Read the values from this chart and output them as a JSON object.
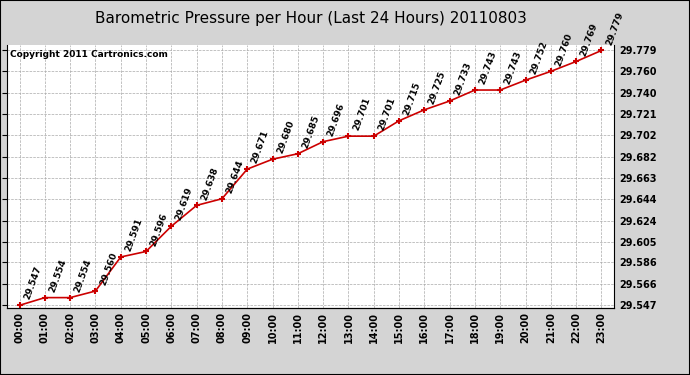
{
  "title": "Barometric Pressure per Hour (Last 24 Hours) 20110803",
  "copyright": "Copyright 2011 Cartronics.com",
  "hours": [
    "00:00",
    "01:00",
    "02:00",
    "03:00",
    "04:00",
    "05:00",
    "06:00",
    "07:00",
    "08:00",
    "09:00",
    "10:00",
    "11:00",
    "12:00",
    "13:00",
    "14:00",
    "15:00",
    "16:00",
    "17:00",
    "18:00",
    "19:00",
    "20:00",
    "21:00",
    "22:00",
    "23:00"
  ],
  "values": [
    29.547,
    29.554,
    29.554,
    29.56,
    29.591,
    29.596,
    29.619,
    29.638,
    29.644,
    29.671,
    29.68,
    29.685,
    29.696,
    29.701,
    29.701,
    29.715,
    29.725,
    29.733,
    29.743,
    29.743,
    29.752,
    29.76,
    29.769,
    29.779
  ],
  "ylim_min": 29.547,
  "ylim_max": 29.779,
  "yticks": [
    29.547,
    29.566,
    29.586,
    29.605,
    29.624,
    29.644,
    29.663,
    29.682,
    29.702,
    29.721,
    29.74,
    29.76,
    29.779
  ],
  "line_color": "#cc0000",
  "marker_color": "#cc0000",
  "bg_color": "#d4d4d4",
  "plot_bg_color": "#ffffff",
  "grid_color": "#aaaaaa",
  "title_fontsize": 11,
  "tick_fontsize": 7,
  "annotation_fontsize": 6.5,
  "copyright_fontsize": 6.5
}
